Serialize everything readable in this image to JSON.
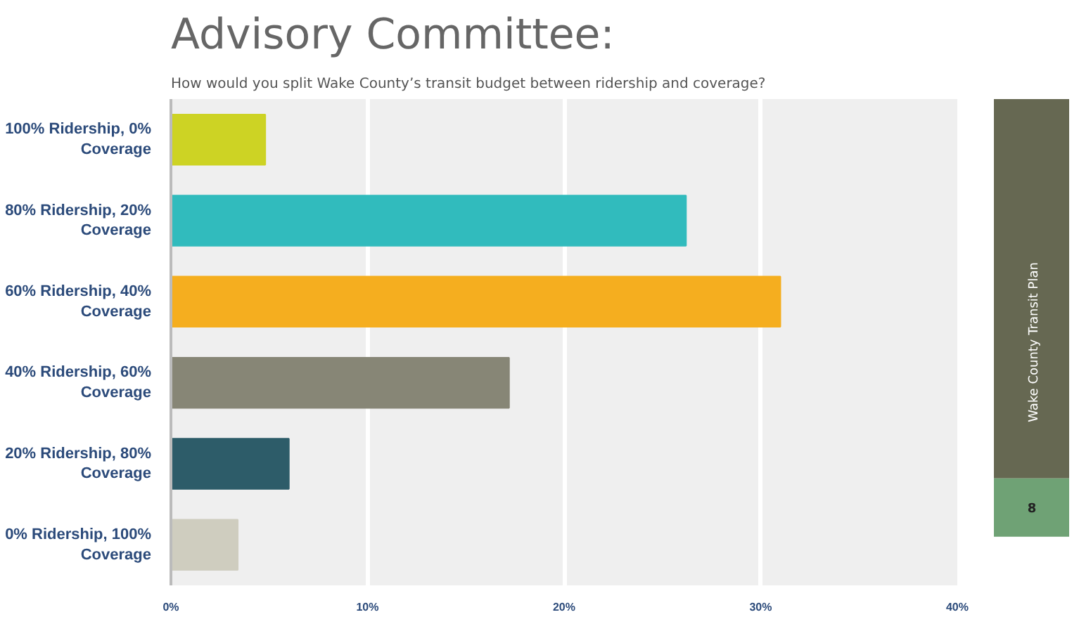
{
  "chart_data": {
    "type": "bar",
    "orientation": "horizontal",
    "title": "Advisory Committee:",
    "subtitle": "How would you split Wake County’s transit budget between ridership and  coverage?",
    "categories": [
      "100% Ridership, 0% Coverage",
      "80% Ridership, 20% Coverage",
      "60% Ridership, 40% Coverage",
      "40% Ridership, 60% Coverage",
      "20% Ridership, 80% Coverage",
      "0% Ridership, 100% Coverage"
    ],
    "values": [
      4.8,
      26.2,
      31.0,
      17.2,
      6.0,
      3.4
    ],
    "colors": [
      "#cdd324",
      "#31bbbd",
      "#f5ae1f",
      "#878676",
      "#2d5c69",
      "#cfcdbf"
    ],
    "xlim": [
      0,
      40
    ],
    "xticks": [
      {
        "value": 0,
        "label": "0%"
      },
      {
        "value": 10,
        "label": "10%"
      },
      {
        "value": 20,
        "label": "20%"
      },
      {
        "value": 30,
        "label": "30%"
      },
      {
        "value": 40,
        "label": "40%"
      }
    ],
    "grid": "x",
    "annotations": [
      "Wake County Transit Plan",
      "8"
    ]
  }
}
